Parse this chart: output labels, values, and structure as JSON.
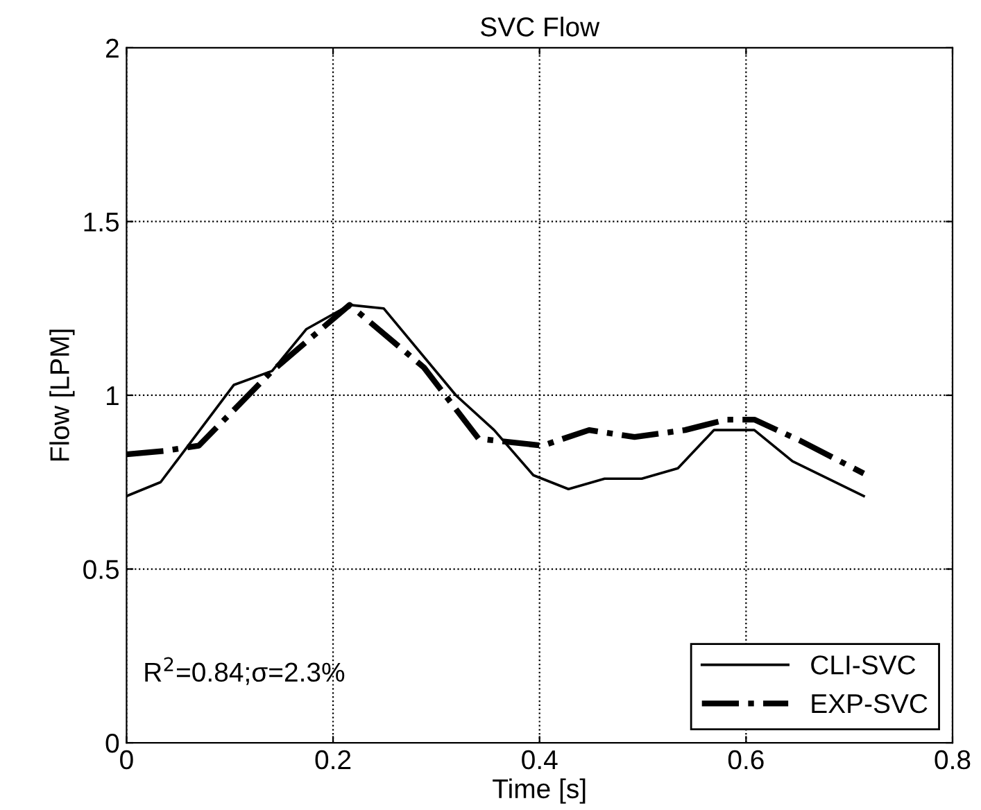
{
  "chart_data": {
    "type": "line",
    "title": "SVC Flow",
    "xlabel": "Time [s]",
    "ylabel": "Flow [LPM]",
    "xlim": [
      0,
      0.8
    ],
    "xticks": [
      0,
      0.2,
      0.4,
      0.6,
      0.8
    ],
    "ylim": [
      0,
      2
    ],
    "yticks": [
      0,
      0.5,
      1,
      1.5,
      2
    ],
    "grid": true,
    "legend": "bottom right",
    "annotations": [
      "R$^{2}$=0.84;σ=2.3%"
    ],
    "series": [
      {
        "name": "CLI-SVC",
        "color": "#000000",
        "line_style": "solid",
        "x": [
          0,
          0.033,
          0.104,
          0.141,
          0.174,
          0.216,
          0.249,
          0.319,
          0.356,
          0.394,
          0.428,
          0.463,
          0.499,
          0.534,
          0.569,
          0.608,
          0.645,
          0.714
        ],
        "values": [
          0.71,
          0.75,
          1.03,
          1.07,
          1.19,
          1.26,
          1.25,
          1.0,
          0.9,
          0.77,
          0.73,
          0.76,
          0.76,
          0.79,
          0.9,
          0.9,
          0.81,
          0.71
        ]
      },
      {
        "name": "EXP-SVC",
        "color": "#000000",
        "line_style": "dashdot",
        "x": [
          0,
          0.037,
          0.07,
          0.141,
          0.216,
          0.288,
          0.341,
          0.403,
          0.448,
          0.492,
          0.541,
          0.581,
          0.608,
          0.652,
          0.714
        ],
        "values": [
          0.83,
          0.84,
          0.855,
          1.07,
          1.26,
          1.08,
          0.875,
          0.855,
          0.9,
          0.88,
          0.9,
          0.93,
          0.93,
          0.87,
          0.775
        ]
      }
    ]
  }
}
